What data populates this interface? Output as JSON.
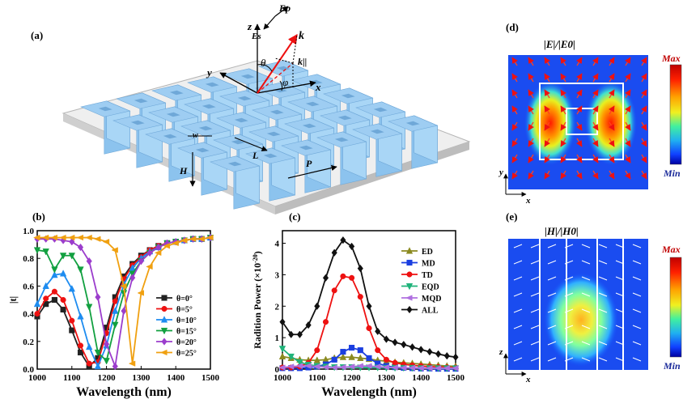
{
  "panels": {
    "a": {
      "label": "(a)",
      "annotations": {
        "z": "z",
        "y": "y",
        "x": "x",
        "k": "k",
        "k_par": "k||",
        "theta": "θ",
        "phi": "φ",
        "Ep": "Ep",
        "Es": "Es",
        "w": "w",
        "L": "L",
        "H": "H",
        "P": "P"
      }
    },
    "b": {
      "label": "(b)"
    },
    "c": {
      "label": "(c)"
    },
    "d": {
      "label": "(d)",
      "title": "|E|/|E0|",
      "colorbar": {
        "max": "Max",
        "min": "Min"
      },
      "axes": {
        "horizontal": "x",
        "vertical": "y"
      }
    },
    "e": {
      "label": "(e)",
      "title": "|H|/|H0|",
      "colorbar": {
        "max": "Max",
        "min": "Min"
      },
      "axes": {
        "horizontal": "x",
        "vertical": "z"
      }
    }
  },
  "colors": {
    "theta0": "#222222",
    "theta5": "#ee1111",
    "theta10": "#1e8cf0",
    "theta15": "#12a040",
    "theta20": "#9b3dcc",
    "theta25": "#f0a010",
    "ED": "#8b8a20",
    "MD": "#1a3ee0",
    "TD": "#ee1111",
    "EQD": "#1fb37a",
    "MQD": "#b070e0",
    "ALL": "#111111",
    "block": "#9ecdf2",
    "substrate": "#d9d9d9"
  },
  "chart_data": [
    {
      "id": "b",
      "type": "line",
      "title": "",
      "xlabel": "Wavelength  (nm)",
      "ylabel": "|t|",
      "xlim": [
        1000,
        1500
      ],
      "ylim": [
        0,
        1.0
      ],
      "xticks": [
        1000,
        1100,
        1200,
        1300,
        1400,
        1500
      ],
      "yticks": [
        0.0,
        0.2,
        0.4,
        0.6,
        0.8,
        1.0
      ],
      "xtick_labels": [
        "1000",
        "1100",
        "1200",
        "1300",
        "1400",
        "1500"
      ],
      "ytick_labels": [
        "0.0",
        "0.2",
        "0.4",
        "0.6",
        "0.8",
        "1.0"
      ],
      "x": [
        1000,
        1025,
        1050,
        1075,
        1100,
        1125,
        1150,
        1175,
        1200,
        1225,
        1250,
        1275,
        1300,
        1325,
        1350,
        1375,
        1400,
        1425,
        1450,
        1475,
        1500
      ],
      "series": [
        {
          "name": "θ=0°",
          "marker": "square",
          "color": "#222222",
          "values": [
            0.38,
            0.47,
            0.5,
            0.43,
            0.28,
            0.12,
            0.02,
            0.08,
            0.3,
            0.52,
            0.67,
            0.76,
            0.82,
            0.86,
            0.89,
            0.91,
            0.92,
            0.93,
            0.94,
            0.94,
            0.95
          ]
        },
        {
          "name": "θ=5°",
          "marker": "circle",
          "color": "#ee1111",
          "values": [
            0.4,
            0.51,
            0.56,
            0.5,
            0.35,
            0.17,
            0.04,
            0.05,
            0.26,
            0.49,
            0.65,
            0.75,
            0.81,
            0.86,
            0.89,
            0.91,
            0.92,
            0.93,
            0.94,
            0.94,
            0.95
          ]
        },
        {
          "name": "θ=10°",
          "marker": "triangle-up",
          "color": "#1e8cf0",
          "values": [
            0.47,
            0.6,
            0.68,
            0.69,
            0.58,
            0.38,
            0.16,
            0.02,
            0.17,
            0.42,
            0.61,
            0.73,
            0.8,
            0.85,
            0.88,
            0.91,
            0.92,
            0.93,
            0.94,
            0.94,
            0.95
          ]
        },
        {
          "name": "θ=15°",
          "marker": "triangle-down",
          "color": "#12a040",
          "values": [
            0.86,
            0.85,
            0.72,
            0.82,
            0.82,
            0.72,
            0.45,
            0.12,
            0.06,
            0.32,
            0.55,
            0.69,
            0.78,
            0.84,
            0.88,
            0.91,
            0.92,
            0.93,
            0.94,
            0.94,
            0.95
          ]
        },
        {
          "name": "θ=20°",
          "marker": "diamond",
          "color": "#9b3dcc",
          "values": [
            0.94,
            0.94,
            0.94,
            0.93,
            0.92,
            0.88,
            0.78,
            0.52,
            0.18,
            0.02,
            0.42,
            0.66,
            0.78,
            0.84,
            0.88,
            0.91,
            0.92,
            0.93,
            0.94,
            0.94,
            0.95
          ]
        },
        {
          "name": "θ=25°",
          "marker": "triangle-left",
          "color": "#f0a010",
          "values": [
            0.95,
            0.95,
            0.95,
            0.95,
            0.95,
            0.95,
            0.95,
            0.94,
            0.92,
            0.86,
            0.6,
            0.04,
            0.55,
            0.74,
            0.84,
            0.89,
            0.91,
            0.93,
            0.94,
            0.94,
            0.95
          ]
        }
      ],
      "legend": {
        "position": "lower-right"
      }
    },
    {
      "id": "c",
      "type": "line",
      "title": "",
      "xlabel": "Wavelength  (nm)",
      "ylabel": "Radition Power  (×10",
      "ylabel_exp": "-20",
      "ylabel_close": ")",
      "xlim": [
        1000,
        1500
      ],
      "ylim": [
        0,
        4.4
      ],
      "xticks": [
        1000,
        1100,
        1200,
        1300,
        1400,
        1500
      ],
      "yticks": [
        0,
        1,
        2,
        3,
        4
      ],
      "xtick_labels": [
        "1000",
        "1100",
        "1200",
        "1300",
        "1400",
        "1500"
      ],
      "ytick_labels": [
        "0",
        "1",
        "2",
        "3",
        "4"
      ],
      "x": [
        1000,
        1025,
        1050,
        1075,
        1100,
        1125,
        1150,
        1175,
        1200,
        1225,
        1250,
        1275,
        1300,
        1325,
        1350,
        1375,
        1400,
        1425,
        1450,
        1475,
        1500
      ],
      "series": [
        {
          "name": "ED",
          "marker": "triangle-up",
          "color": "#8b8a20",
          "values": [
            0.4,
            0.35,
            0.3,
            0.28,
            0.28,
            0.3,
            0.35,
            0.38,
            0.38,
            0.35,
            0.32,
            0.28,
            0.25,
            0.22,
            0.2,
            0.18,
            0.16,
            0.14,
            0.12,
            0.1,
            0.09
          ]
        },
        {
          "name": "MD",
          "marker": "square",
          "color": "#1a3ee0",
          "values": [
            0.03,
            0.03,
            0.03,
            0.05,
            0.08,
            0.15,
            0.3,
            0.55,
            0.68,
            0.6,
            0.35,
            0.18,
            0.1,
            0.06,
            0.04,
            0.03,
            0.02,
            0.02,
            0.01,
            0.01,
            0.01
          ]
        },
        {
          "name": "TD",
          "marker": "circle",
          "color": "#ee1111",
          "values": [
            0.05,
            0.05,
            0.08,
            0.2,
            0.6,
            1.5,
            2.5,
            2.95,
            2.9,
            2.3,
            1.3,
            0.6,
            0.3,
            0.2,
            0.15,
            0.12,
            0.1,
            0.08,
            0.07,
            0.06,
            0.05
          ]
        },
        {
          "name": "EQD",
          "marker": "triangle-down",
          "color": "#1fb37a",
          "values": [
            0.65,
            0.4,
            0.22,
            0.14,
            0.1,
            0.08,
            0.06,
            0.06,
            0.06,
            0.05,
            0.05,
            0.05,
            0.04,
            0.04,
            0.04,
            0.04,
            0.03,
            0.03,
            0.03,
            0.03,
            0.03
          ]
        },
        {
          "name": "MQD",
          "marker": "triangle-left",
          "color": "#b070e0",
          "values": [
            0.05,
            0.08,
            0.1,
            0.1,
            0.08,
            0.06,
            0.05,
            0.06,
            0.08,
            0.1,
            0.1,
            0.08,
            0.06,
            0.05,
            0.04,
            0.04,
            0.03,
            0.03,
            0.03,
            0.03,
            0.03
          ]
        },
        {
          "name": "ALL",
          "marker": "diamond",
          "color": "#111111",
          "values": [
            1.5,
            1.1,
            1.1,
            1.4,
            2.0,
            2.9,
            3.7,
            4.1,
            3.9,
            3.2,
            2.0,
            1.2,
            0.95,
            0.85,
            0.78,
            0.7,
            0.62,
            0.55,
            0.48,
            0.42,
            0.38
          ]
        }
      ],
      "legend": {
        "position": "right"
      }
    }
  ]
}
